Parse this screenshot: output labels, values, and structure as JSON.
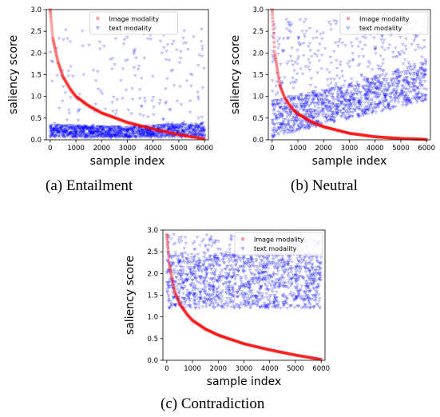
{
  "chart_data": [
    {
      "type": "scatter",
      "caption": "(a) Entailment",
      "xlabel": "sample index",
      "ylabel": "saliency score",
      "xlim": [
        -150,
        6150
      ],
      "ylim": [
        0,
        3.0
      ],
      "xticks": [
        0,
        1000,
        2000,
        3000,
        4000,
        5000,
        6000
      ],
      "yticks": [
        0.0,
        0.5,
        1.0,
        1.5,
        2.0,
        2.5,
        3.0
      ],
      "ytick_labels": [
        "0.0",
        "0.5",
        "1.0",
        "1.5",
        "2.0",
        "2.5",
        "3.0"
      ],
      "legend_loc": "upper-center",
      "series": [
        {
          "name": "Image modality",
          "marker": "square",
          "color": "#ff0000",
          "n": 6000,
          "curve": [
            [
              0,
              3.0
            ],
            [
              100,
              2.35
            ],
            [
              300,
              1.8
            ],
            [
              500,
              1.45
            ],
            [
              800,
              1.15
            ],
            [
              1000,
              1.0
            ],
            [
              1500,
              0.78
            ],
            [
              2000,
              0.62
            ],
            [
              3000,
              0.4
            ],
            [
              4000,
              0.25
            ],
            [
              5000,
              0.12
            ],
            [
              6000,
              0.02
            ]
          ]
        },
        {
          "name": "text modality",
          "marker": "triangle-down",
          "color": "#0000ff",
          "n": 6000,
          "band_low": [
            [
              0,
              0.05
            ],
            [
              6000,
              0.05
            ]
          ],
          "band_high": [
            [
              0,
              0.35
            ],
            [
              3000,
              0.3
            ],
            [
              6000,
              0.4
            ]
          ],
          "outlier_max": 2.6,
          "outlier_fraction": 0.12
        }
      ]
    },
    {
      "type": "scatter",
      "caption": "(b) Neutral",
      "xlabel": "sample index",
      "ylabel": "saliency score",
      "xlim": [
        -150,
        6150
      ],
      "ylim": [
        0,
        3.0
      ],
      "xticks": [
        0,
        1000,
        2000,
        3000,
        4000,
        5000,
        6000
      ],
      "yticks": [
        0.0,
        0.5,
        1.0,
        1.5,
        2.0,
        2.5,
        3.0
      ],
      "ytick_labels": [
        "0.0",
        "0.5",
        "1.0",
        "1.5",
        "2.0",
        "2.5",
        "3.0"
      ],
      "legend_loc": "upper-right",
      "series": [
        {
          "name": "Image modality",
          "marker": "square",
          "color": "#ff0000",
          "n": 6000,
          "curve": [
            [
              0,
              3.0
            ],
            [
              100,
              2.0
            ],
            [
              300,
              1.25
            ],
            [
              500,
              0.95
            ],
            [
              800,
              0.7
            ],
            [
              1000,
              0.6
            ],
            [
              1500,
              0.42
            ],
            [
              2000,
              0.3
            ],
            [
              3000,
              0.15
            ],
            [
              4000,
              0.07
            ],
            [
              5000,
              0.03
            ],
            [
              6000,
              0.01
            ]
          ]
        },
        {
          "name": "text modality",
          "marker": "triangle-down",
          "color": "#0000ff",
          "n": 6000,
          "band_low": [
            [
              0,
              0.05
            ],
            [
              6000,
              0.9
            ]
          ],
          "band_high": [
            [
              0,
              0.9
            ],
            [
              3000,
              1.3
            ],
            [
              6000,
              1.8
            ]
          ],
          "outlier_max": 2.8,
          "outlier_fraction": 0.3
        }
      ]
    },
    {
      "type": "scatter",
      "caption": "(c) Contradiction",
      "xlabel": "sample index",
      "ylabel": "saliency score",
      "xlim": [
        -150,
        6150
      ],
      "ylim": [
        0,
        3.0
      ],
      "xticks": [
        0,
        1000,
        2000,
        3000,
        4000,
        5000,
        6000
      ],
      "yticks": [
        0.0,
        0.5,
        1.0,
        1.5,
        2.0,
        2.5,
        3.0
      ],
      "ytick_labels": [
        "0.0",
        "0.5",
        "1.0",
        "1.5",
        "2.0",
        "2.5",
        "3.0"
      ],
      "legend_loc": "upper-right",
      "series": [
        {
          "name": "Image modality",
          "marker": "square",
          "color": "#ff0000",
          "n": 6000,
          "curve": [
            [
              0,
              2.9
            ],
            [
              100,
              2.2
            ],
            [
              300,
              1.6
            ],
            [
              500,
              1.3
            ],
            [
              800,
              1.05
            ],
            [
              1000,
              0.92
            ],
            [
              1500,
              0.72
            ],
            [
              2000,
              0.58
            ],
            [
              3000,
              0.38
            ],
            [
              4000,
              0.24
            ],
            [
              5000,
              0.12
            ],
            [
              6000,
              0.02
            ]
          ]
        },
        {
          "name": "text modality",
          "marker": "triangle-down",
          "color": "#0000ff",
          "n": 6000,
          "band_low": [
            [
              0,
              1.2
            ],
            [
              6000,
              1.2
            ]
          ],
          "band_high": [
            [
              0,
              2.45
            ],
            [
              6000,
              2.45
            ]
          ],
          "outlier_max": 2.9,
          "outlier_fraction": 0.35
        }
      ]
    }
  ]
}
